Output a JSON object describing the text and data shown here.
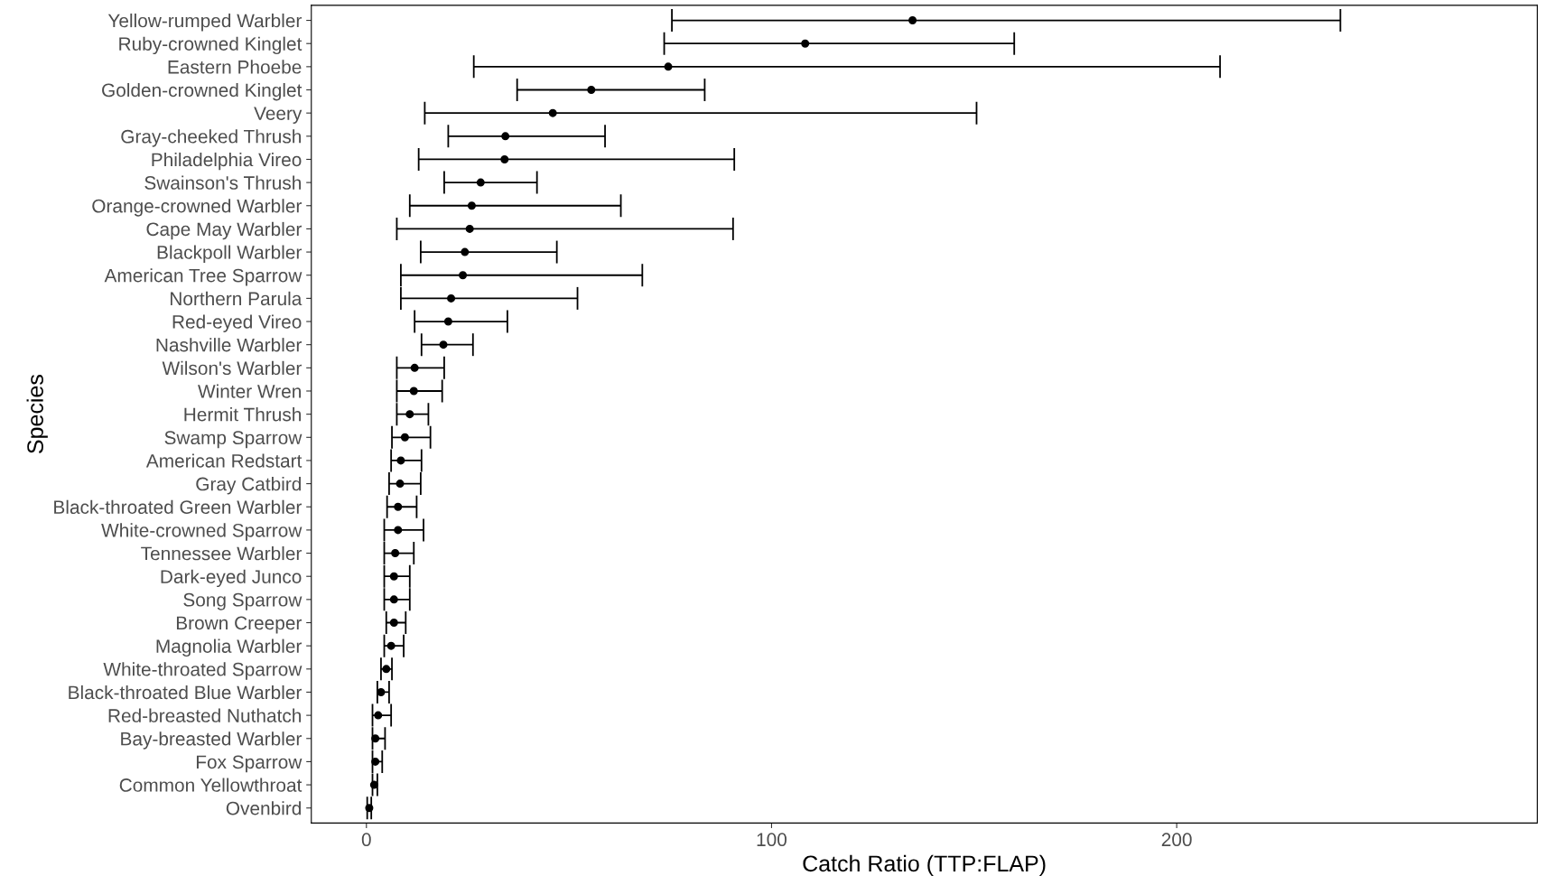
{
  "chart_data": {
    "type": "scatter",
    "orientation": "horizontal",
    "xlabel": "Catch Ratio (TTP:FLAP)",
    "ylabel": "Species",
    "categories": [
      "Yellow-rumped Warbler",
      "Ruby-crowned Kinglet",
      "Eastern Phoebe",
      "Golden-crowned Kinglet",
      "Veery",
      "Gray-cheeked Thrush",
      "Philadelphia Vireo",
      "Swainson's Thrush",
      "Orange-crowned Warbler",
      "Cape May Warbler",
      "Blackpoll Warbler",
      "American Tree Sparrow",
      "Northern Parula",
      "Red-eyed Vireo",
      "Nashville Warbler",
      "Wilson's Warbler",
      "Winter Wren",
      "Hermit Thrush",
      "Swamp Sparrow",
      "American Redstart",
      "Gray Catbird",
      "Black-throated Green Warbler",
      "White-crowned Sparrow",
      "Tennessee Warbler",
      "Dark-eyed Junco",
      "Song Sparrow",
      "Brown Creeper",
      "Magnolia Warbler",
      "White-throated Sparrow",
      "Black-throated Blue Warbler",
      "Red-breasted Nuthatch",
      "Bay-breasted Warbler",
      "Fox Sparrow",
      "Common Yellowthroat",
      "Ovenbird"
    ],
    "series": [
      {
        "color": "#000000",
        "values": [
          134.8,
          108.3,
          74.5,
          55.5,
          46.0,
          34.3,
          34.1,
          28.2,
          26.0,
          25.5,
          24.3,
          23.8,
          20.9,
          20.2,
          19.0,
          11.9,
          11.7,
          10.7,
          9.5,
          8.5,
          8.3,
          7.8,
          7.8,
          7.1,
          6.8,
          6.8,
          6.8,
          6.1,
          4.9,
          3.6,
          2.9,
          2.2,
          2.2,
          1.9,
          0.7
        ],
        "errors": [
          [
            75.4,
            240.4
          ],
          [
            73.5,
            159.9
          ],
          [
            26.5,
            210.7
          ],
          [
            37.2,
            83.5
          ],
          [
            14.4,
            150.6
          ],
          [
            20.2,
            58.9
          ],
          [
            12.9,
            90.8
          ],
          [
            19.2,
            42.1
          ],
          [
            10.7,
            62.8
          ],
          [
            7.5,
            90.5
          ],
          [
            13.4,
            47.0
          ],
          [
            8.5,
            68.1
          ],
          [
            8.5,
            52.1
          ],
          [
            11.9,
            34.8
          ],
          [
            13.6,
            26.3
          ],
          [
            7.5,
            19.2
          ],
          [
            7.5,
            18.7
          ],
          [
            7.5,
            15.3
          ],
          [
            6.3,
            15.8
          ],
          [
            6.1,
            13.6
          ],
          [
            5.6,
            13.4
          ],
          [
            5.1,
            12.4
          ],
          [
            4.4,
            14.1
          ],
          [
            4.4,
            11.7
          ],
          [
            4.4,
            10.7
          ],
          [
            4.4,
            10.7
          ],
          [
            4.9,
            9.7
          ],
          [
            4.4,
            9.2
          ],
          [
            3.6,
            6.3
          ],
          [
            2.7,
            5.6
          ],
          [
            1.5,
            6.1
          ],
          [
            1.5,
            4.6
          ],
          [
            1.5,
            3.9
          ],
          [
            1.5,
            2.7
          ],
          [
            0.2,
            1.2
          ]
        ]
      }
    ],
    "xlim": [
      -13.6,
      289
    ],
    "xticks": [
      0,
      100,
      200
    ],
    "grid": false,
    "legend": false,
    "marker": "circle"
  }
}
